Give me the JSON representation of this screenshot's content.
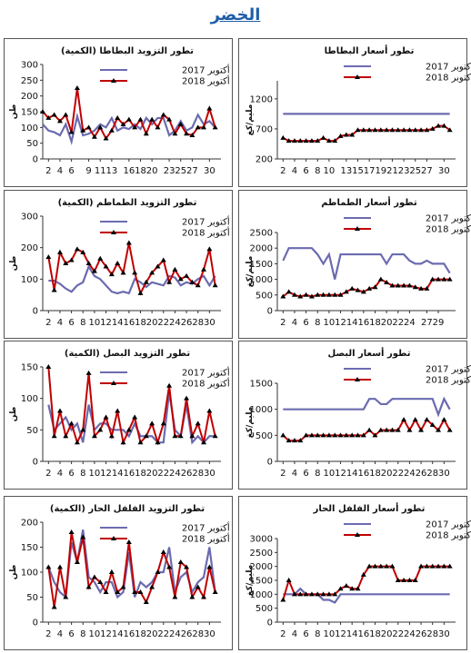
{
  "page": {
    "title": "الخضر"
  },
  "colors": {
    "series2017": "#6b6bb0",
    "series2018": "#c00000",
    "marker2018": "#000000"
  },
  "chart_data": [
    {
      "id": "potato-supply",
      "type": "line",
      "title": "تطور التزويد البطاطا (الكمية)",
      "ylabel": "طن",
      "ylim": [
        0,
        300
      ],
      "yticks": [
        0,
        50,
        100,
        150,
        200,
        250,
        300
      ],
      "x": [
        1,
        2,
        3,
        4,
        5,
        6,
        7,
        8,
        9,
        10,
        11,
        12,
        13,
        14,
        15,
        16,
        17,
        18,
        19,
        20,
        21,
        22,
        23,
        24,
        25,
        26,
        27,
        28,
        29,
        30,
        31
      ],
      "xticks": [
        2,
        4,
        6,
        9,
        11,
        13,
        16,
        18,
        20,
        23,
        25,
        27,
        30
      ],
      "series": [
        {
          "name": "أكتوبر 2017",
          "values": [
            110,
            90,
            85,
            75,
            110,
            55,
            135,
            75,
            80,
            90,
            110,
            100,
            130,
            90,
            100,
            95,
            110,
            95,
            130,
            110,
            130,
            130,
            75,
            90,
            120,
            90,
            100,
            140,
            110,
            120,
            100
          ]
        },
        {
          "name": "أكتوبر 2018",
          "values": [
            150,
            130,
            140,
            120,
            140,
            85,
            225,
            90,
            100,
            70,
            100,
            65,
            90,
            130,
            110,
            125,
            100,
            125,
            80,
            125,
            100,
            140,
            125,
            80,
            110,
            80,
            75,
            100,
            100,
            160,
            100
          ]
        }
      ]
    },
    {
      "id": "potato-price",
      "type": "line",
      "title": "تطور أسعار البطاطا",
      "ylabel": "مليم/كغ",
      "ylim": [
        200,
        1500
      ],
      "yticks": [
        200,
        700,
        1200
      ],
      "x": [
        2,
        3,
        4,
        5,
        6,
        7,
        8,
        9,
        10,
        11,
        12,
        13,
        14,
        15,
        16,
        17,
        18,
        19,
        20,
        21,
        22,
        23,
        24,
        25,
        26,
        27,
        28,
        29,
        30,
        31
      ],
      "xticks": [
        2,
        4,
        6,
        8,
        10,
        13,
        15,
        17,
        19,
        21,
        23,
        25,
        27,
        30
      ],
      "series": [
        {
          "name": "أكتوبر 2017",
          "values": [
            950,
            950,
            950,
            950,
            950,
            950,
            950,
            950,
            950,
            950,
            950,
            950,
            950,
            950,
            950,
            950,
            950,
            950,
            950,
            950,
            950,
            950,
            950,
            950,
            950,
            950,
            950,
            950,
            950,
            950
          ]
        },
        {
          "name": "أكتوبر 2018",
          "values": [
            550,
            500,
            500,
            500,
            500,
            500,
            500,
            550,
            500,
            500,
            580,
            600,
            600,
            680,
            680,
            680,
            680,
            680,
            680,
            680,
            680,
            680,
            680,
            680,
            680,
            680,
            700,
            750,
            750,
            680
          ]
        }
      ]
    },
    {
      "id": "tomato-supply",
      "type": "line",
      "title": "تطور التزويد الطماطم (الكمية)",
      "ylabel": "طن",
      "ylim": [
        0,
        300
      ],
      "yticks": [
        0,
        100,
        200,
        300
      ],
      "x": [
        2,
        3,
        4,
        5,
        6,
        7,
        8,
        9,
        10,
        11,
        12,
        13,
        14,
        15,
        16,
        17,
        18,
        19,
        20,
        21,
        22,
        23,
        24,
        25,
        26,
        27,
        28,
        29,
        30,
        31
      ],
      "xticks": [
        2,
        4,
        6,
        8,
        10,
        12,
        14,
        16,
        18,
        20,
        22,
        24,
        26,
        28,
        30
      ],
      "series": [
        {
          "name": "أكتوبر 2017",
          "values": [
            95,
            95,
            85,
            70,
            60,
            80,
            90,
            140,
            110,
            100,
            80,
            60,
            55,
            60,
            55,
            100,
            90,
            75,
            90,
            85,
            80,
            110,
            105,
            80,
            90,
            85,
            100,
            110,
            80,
            110
          ]
        },
        {
          "name": "أكتوبر 2018",
          "values": [
            170,
            65,
            185,
            150,
            160,
            195,
            185,
            150,
            125,
            165,
            140,
            115,
            150,
            120,
            215,
            120,
            55,
            90,
            120,
            140,
            160,
            90,
            130,
            100,
            110,
            90,
            80,
            130,
            195,
            80
          ]
        }
      ]
    },
    {
      "id": "tomato-price",
      "type": "line",
      "title": "تطور أسعار الطماطم",
      "ylabel": "مليم/كغ",
      "ylim": [
        0,
        2500
      ],
      "yticks": [
        0,
        500,
        1000,
        1500,
        2000,
        2500
      ],
      "x": [
        2,
        3,
        4,
        5,
        6,
        7,
        8,
        9,
        10,
        11,
        12,
        13,
        14,
        15,
        16,
        17,
        18,
        19,
        20,
        21,
        22,
        23,
        24,
        25,
        26,
        27,
        28,
        29,
        30,
        31
      ],
      "xticks": [
        2,
        4,
        6,
        8,
        10,
        12,
        14,
        16,
        18,
        20,
        22,
        24,
        27,
        29
      ],
      "series": [
        {
          "name": "أكتوبر 2017",
          "values": [
            1600,
            2000,
            2000,
            2000,
            2000,
            2000,
            1800,
            1500,
            1800,
            1000,
            1800,
            1800,
            1800,
            1800,
            1800,
            1800,
            1800,
            1800,
            1500,
            1800,
            1800,
            1800,
            1600,
            1500,
            1500,
            1600,
            1500,
            1500,
            1500,
            1200
          ]
        },
        {
          "name": "أكتوبر 2018",
          "values": [
            450,
            600,
            500,
            450,
            500,
            450,
            500,
            500,
            500,
            500,
            500,
            600,
            700,
            650,
            600,
            700,
            750,
            1000,
            900,
            800,
            800,
            800,
            800,
            750,
            700,
            700,
            1000,
            1000,
            1000,
            1000
          ]
        }
      ]
    },
    {
      "id": "onion-supply",
      "type": "line",
      "title": "تطور التزويد البصل (الكمية)",
      "ylabel": "طن",
      "ylim": [
        0,
        150
      ],
      "yticks": [
        0,
        50,
        100,
        150
      ],
      "x": [
        2,
        3,
        4,
        5,
        6,
        7,
        8,
        9,
        10,
        11,
        12,
        13,
        14,
        15,
        16,
        17,
        18,
        19,
        20,
        21,
        22,
        23,
        24,
        25,
        26,
        27,
        28,
        29,
        30,
        31
      ],
      "xticks": [
        2,
        4,
        6,
        8,
        10,
        12,
        14,
        16,
        18,
        20,
        22,
        24,
        26,
        28,
        30
      ],
      "series": [
        {
          "name": "أكتوبر 2017",
          "values": [
            90,
            50,
            60,
            70,
            50,
            60,
            30,
            90,
            50,
            60,
            60,
            50,
            50,
            50,
            40,
            60,
            40,
            40,
            40,
            30,
            30,
            110,
            50,
            40,
            90,
            30,
            40,
            30,
            40,
            40
          ]
        },
        {
          "name": "أكتوبر 2018",
          "values": [
            150,
            40,
            80,
            40,
            60,
            30,
            50,
            140,
            40,
            50,
            70,
            40,
            80,
            30,
            50,
            70,
            30,
            40,
            60,
            30,
            60,
            120,
            40,
            40,
            100,
            40,
            60,
            30,
            80,
            40
          ]
        }
      ]
    },
    {
      "id": "onion-price",
      "type": "line",
      "title": "تطور أسعار البصل",
      "ylabel": "مليم/كغ",
      "ylim": [
        0,
        1500
      ],
      "yticks": [
        0,
        500,
        1000,
        1500
      ],
      "x": [
        2,
        3,
        4,
        5,
        6,
        7,
        8,
        9,
        10,
        11,
        12,
        13,
        14,
        15,
        16,
        17,
        18,
        19,
        20,
        21,
        22,
        23,
        24,
        25,
        26,
        27,
        28,
        29,
        30,
        31
      ],
      "xticks": [
        2,
        4,
        6,
        8,
        10,
        12,
        14,
        16,
        18,
        20,
        22,
        24,
        26,
        28,
        30
      ],
      "series": [
        {
          "name": "أكتوبر 2017",
          "values": [
            1000,
            1000,
            1000,
            1000,
            1000,
            1000,
            1000,
            1000,
            1000,
            1000,
            1000,
            1000,
            1000,
            1000,
            1000,
            1200,
            1200,
            1100,
            1100,
            1200,
            1200,
            1200,
            1200,
            1200,
            1200,
            1200,
            1200,
            900,
            1200,
            1000
          ]
        },
        {
          "name": "أكتوبر 2018",
          "values": [
            500,
            400,
            400,
            400,
            500,
            500,
            500,
            500,
            500,
            500,
            500,
            500,
            500,
            500,
            500,
            600,
            500,
            600,
            600,
            600,
            600,
            800,
            600,
            800,
            600,
            800,
            700,
            600,
            800,
            600
          ]
        }
      ]
    },
    {
      "id": "hotpepper-supply",
      "type": "line",
      "title": "تطور التزويد الفلفل الحار (الكمية)",
      "ylabel": "طن",
      "ylim": [
        0,
        200
      ],
      "yticks": [
        0,
        50,
        100,
        150,
        200
      ],
      "x": [
        2,
        3,
        4,
        5,
        6,
        7,
        8,
        9,
        10,
        11,
        12,
        13,
        14,
        15,
        16,
        17,
        18,
        19,
        20,
        21,
        22,
        23,
        24,
        25,
        26,
        27,
        28,
        29,
        30,
        31
      ],
      "xticks": [
        2,
        4,
        6,
        8,
        10,
        12,
        14,
        16,
        18,
        20,
        22,
        24,
        26,
        28,
        30
      ],
      "series": [
        {
          "name": "أكتوبر 2017",
          "values": [
            110,
            80,
            60,
            50,
            160,
            120,
            185,
            90,
            80,
            60,
            80,
            80,
            50,
            60,
            140,
            50,
            80,
            70,
            80,
            100,
            100,
            150,
            60,
            90,
            100,
            60,
            80,
            90,
            150,
            60
          ]
        },
        {
          "name": "أكتوبر 2018",
          "values": [
            110,
            30,
            110,
            50,
            180,
            120,
            170,
            70,
            90,
            80,
            60,
            100,
            60,
            70,
            160,
            60,
            60,
            40,
            70,
            100,
            140,
            110,
            50,
            120,
            110,
            50,
            70,
            50,
            110,
            60
          ]
        }
      ]
    },
    {
      "id": "hotpepper-price",
      "type": "line",
      "title": "تطور أسعار الفلفل الحار",
      "ylabel": "مليم/كغ",
      "ylim": [
        0,
        3000
      ],
      "yticks": [
        0,
        500,
        1000,
        1500,
        2000,
        2500,
        3000
      ],
      "x": [
        2,
        3,
        4,
        5,
        6,
        7,
        8,
        9,
        10,
        11,
        12,
        13,
        14,
        15,
        16,
        17,
        18,
        19,
        20,
        21,
        22,
        23,
        24,
        25,
        26,
        27,
        28,
        29,
        30,
        31
      ],
      "xticks": [
        2,
        4,
        6,
        8,
        10,
        12,
        14,
        16,
        18,
        20,
        22,
        24,
        26,
        28,
        30
      ],
      "series": [
        {
          "name": "أكتوبر 2017",
          "values": [
            1000,
            1000,
            1000,
            1200,
            1000,
            1000,
            1000,
            800,
            800,
            700,
            1000,
            1000,
            1000,
            1000,
            1000,
            1000,
            1000,
            1000,
            1000,
            1000,
            1000,
            1000,
            1000,
            1000,
            1000,
            1000,
            1000,
            1000,
            1000,
            1000
          ]
        },
        {
          "name": "أكتوبر 2018",
          "values": [
            800,
            1500,
            1000,
            1000,
            1000,
            1000,
            1000,
            1000,
            1000,
            1000,
            1200,
            1300,
            1200,
            1200,
            1700,
            2000,
            2000,
            2000,
            2000,
            2000,
            1500,
            1500,
            1500,
            1500,
            2000,
            2000,
            2000,
            2000,
            2000,
            2000
          ]
        }
      ]
    }
  ]
}
